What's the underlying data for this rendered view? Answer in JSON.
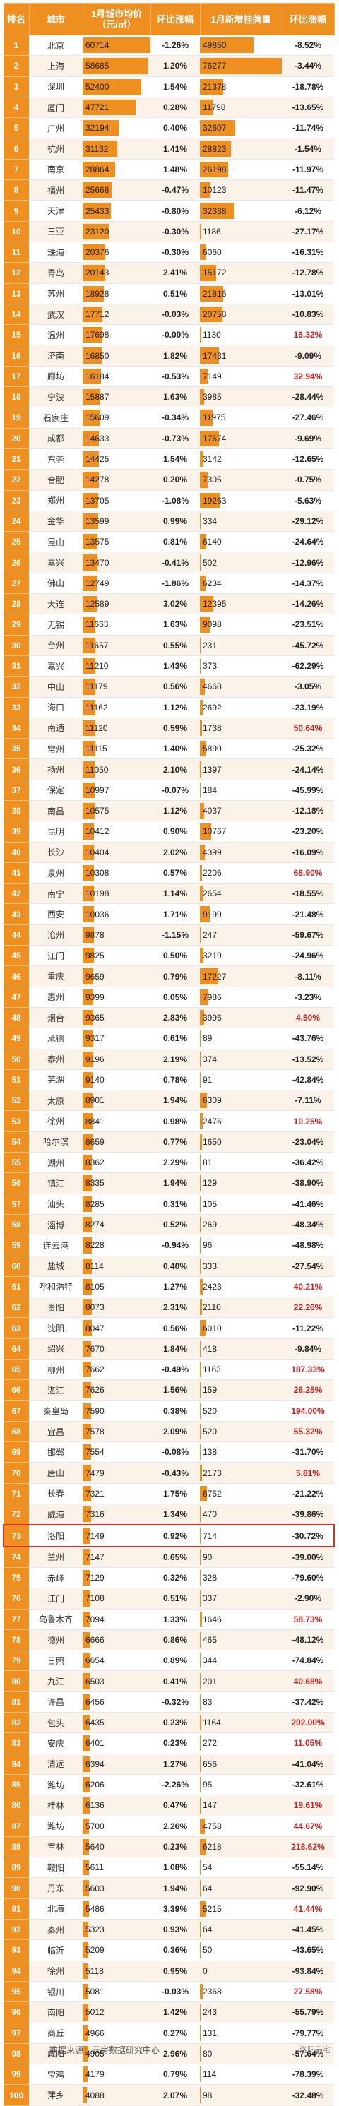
{
  "header": {
    "rank": "排名",
    "city": "城市",
    "price": "1月城市均价\n（元/㎡）",
    "price_change": "环比涨幅",
    "listings": "1月新增挂牌量",
    "listings_change": "环比涨幅"
  },
  "highlighted_rank": 73,
  "footer": {
    "source": "数据来源：云房数据研究中心",
    "watermark": "洛阳云宅"
  },
  "colors": {
    "header": "#ef8f1f",
    "bar": "#ef8f1f",
    "highlight_border": "#d0342c",
    "positive_change": "#c81e1e"
  },
  "max_price": 60714,
  "max_listings": 76277,
  "rows": [
    [
      "1",
      "北京",
      "60714",
      "-1.26%",
      "49850",
      "-8.52%"
    ],
    [
      "2",
      "上海",
      "58685",
      "1.20%",
      "76277",
      "-3.44%"
    ],
    [
      "3",
      "深圳",
      "52400",
      "1.54%",
      "21378",
      "-18.78%"
    ],
    [
      "4",
      "厦门",
      "47721",
      "0.28%",
      "11798",
      "-13.65%"
    ],
    [
      "5",
      "广州",
      "32194",
      "0.40%",
      "32607",
      "-11.74%"
    ],
    [
      "6",
      "杭州",
      "31132",
      "1.41%",
      "28823",
      "-1.54%"
    ],
    [
      "7",
      "南京",
      "28864",
      "1.48%",
      "26198",
      "-11.97%"
    ],
    [
      "8",
      "福州",
      "25668",
      "-0.47%",
      "10123",
      "-11.47%"
    ],
    [
      "9",
      "天津",
      "25433",
      "-0.80%",
      "32338",
      "-6.12%"
    ],
    [
      "10",
      "三亚",
      "23120",
      "-0.30%",
      "1186",
      "-27.17%"
    ],
    [
      "11",
      "珠海",
      "20376",
      "-0.30%",
      "6060",
      "-16.31%"
    ],
    [
      "12",
      "青岛",
      "20143",
      "2.41%",
      "15172",
      "-12.78%"
    ],
    [
      "13",
      "苏州",
      "18928",
      "0.51%",
      "21816",
      "-13.01%"
    ],
    [
      "14",
      "武汉",
      "17712",
      "-0.03%",
      "20758",
      "-10.83%"
    ],
    [
      "15",
      "温州",
      "17698",
      "-0.00%",
      "1130",
      "16.32%"
    ],
    [
      "16",
      "济南",
      "16850",
      "1.82%",
      "17431",
      "-9.09%"
    ],
    [
      "17",
      "廊坊",
      "16184",
      "-0.53%",
      "7149",
      "32.94%"
    ],
    [
      "18",
      "宁波",
      "15887",
      "1.63%",
      "3985",
      "-28.44%"
    ],
    [
      "19",
      "石家庄",
      "15609",
      "-0.34%",
      "11975",
      "-27.46%"
    ],
    [
      "20",
      "成都",
      "14633",
      "-0.73%",
      "17674",
      "-9.69%"
    ],
    [
      "21",
      "东莞",
      "14425",
      "1.54%",
      "3142",
      "-12.65%"
    ],
    [
      "22",
      "合肥",
      "14278",
      "0.20%",
      "7305",
      "-0.75%"
    ],
    [
      "23",
      "郑州",
      "13705",
      "-1.08%",
      "19263",
      "-5.63%"
    ],
    [
      "24",
      "金华",
      "13599",
      "0.99%",
      "334",
      "-29.12%"
    ],
    [
      "25",
      "昆山",
      "13575",
      "0.81%",
      "6140",
      "-24.64%"
    ],
    [
      "26",
      "嘉兴",
      "13470",
      "-0.41%",
      "502",
      "-12.96%"
    ],
    [
      "27",
      "佛山",
      "12749",
      "-1.86%",
      "6234",
      "-14.37%"
    ],
    [
      "28",
      "大连",
      "12589",
      "3.02%",
      "12395",
      "-14.26%"
    ],
    [
      "29",
      "无锡",
      "11663",
      "1.63%",
      "9098",
      "-23.51%"
    ],
    [
      "30",
      "台州",
      "11657",
      "0.55%",
      "231",
      "-45.72%"
    ],
    [
      "31",
      "嘉兴",
      "11210",
      "1.43%",
      "373",
      "-62.29%"
    ],
    [
      "32",
      "中山",
      "11179",
      "0.56%",
      "4668",
      "-3.05%"
    ],
    [
      "33",
      "海口",
      "11162",
      "1.12%",
      "2692",
      "-23.19%"
    ],
    [
      "34",
      "南通",
      "11120",
      "0.59%",
      "1738",
      "50.64%"
    ],
    [
      "35",
      "常州",
      "11115",
      "1.40%",
      "5890",
      "-25.32%"
    ],
    [
      "36",
      "扬州",
      "11050",
      "2.10%",
      "1397",
      "-24.14%"
    ],
    [
      "37",
      "保定",
      "10997",
      "-0.07%",
      "184",
      "-45.99%"
    ],
    [
      "38",
      "南昌",
      "10575",
      "1.12%",
      "4037",
      "-12.18%"
    ],
    [
      "39",
      "昆明",
      "10412",
      "0.90%",
      "10767",
      "-23.20%"
    ],
    [
      "40",
      "长沙",
      "10404",
      "2.02%",
      "4399",
      "-16.09%"
    ],
    [
      "41",
      "泉州",
      "10308",
      "0.57%",
      "2206",
      "68.90%"
    ],
    [
      "42",
      "南宁",
      "10198",
      "1.14%",
      "2654",
      "-18.55%"
    ],
    [
      "43",
      "西安",
      "10036",
      "1.71%",
      "9199",
      "-21.48%"
    ],
    [
      "44",
      "沧州",
      "9878",
      "-1.15%",
      "247",
      "-59.67%"
    ],
    [
      "45",
      "江门",
      "9825",
      "0.50%",
      "3219",
      "-24.96%"
    ],
    [
      "46",
      "重庆",
      "9659",
      "0.79%",
      "17227",
      "-8.11%"
    ],
    [
      "47",
      "惠州",
      "9399",
      "0.05%",
      "7986",
      "-3.23%"
    ],
    [
      "48",
      "烟台",
      "9365",
      "2.83%",
      "3996",
      "4.50%"
    ],
    [
      "49",
      "承德",
      "9317",
      "0.61%",
      "89",
      "-43.76%"
    ],
    [
      "50",
      "泰州",
      "9196",
      "2.19%",
      "374",
      "-13.52%"
    ],
    [
      "51",
      "芜湖",
      "9140",
      "0.78%",
      "91",
      "-42.84%"
    ],
    [
      "52",
      "太原",
      "8901",
      "1.94%",
      "6309",
      "-7.11%"
    ],
    [
      "53",
      "徐州",
      "8841",
      "0.98%",
      "2476",
      "10.25%"
    ],
    [
      "54",
      "哈尔滨",
      "8659",
      "0.77%",
      "1650",
      "-23.04%"
    ],
    [
      "55",
      "湖州",
      "8362",
      "2.29%",
      "81",
      "-36.42%"
    ],
    [
      "56",
      "镇江",
      "8335",
      "1.94%",
      "129",
      "-38.90%"
    ],
    [
      "57",
      "汕头",
      "8285",
      "0.31%",
      "105",
      "-41.46%"
    ],
    [
      "58",
      "淄博",
      "8274",
      "0.52%",
      "269",
      "-48.34%"
    ],
    [
      "59",
      "连云港",
      "8228",
      "-0.94%",
      "96",
      "-48.98%"
    ],
    [
      "60",
      "盐城",
      "8114",
      "0.40%",
      "333",
      "-27.54%"
    ],
    [
      "61",
      "呼和浩特",
      "8105",
      "1.27%",
      "2423",
      "40.21%"
    ],
    [
      "62",
      "贵阳",
      "8073",
      "2.31%",
      "2110",
      "22.26%"
    ],
    [
      "63",
      "沈阳",
      "8047",
      "0.56%",
      "6010",
      "-11.22%"
    ],
    [
      "64",
      "绍兴",
      "7670",
      "1.84%",
      "418",
      "-9.84%"
    ],
    [
      "65",
      "柳州",
      "7662",
      "-0.49%",
      "1163",
      "187.33%"
    ],
    [
      "66",
      "湛江",
      "7626",
      "1.56%",
      "159",
      "26.25%"
    ],
    [
      "67",
      "秦皇岛",
      "7590",
      "0.38%",
      "520",
      "194.00%"
    ],
    [
      "68",
      "宜昌",
      "7578",
      "2.09%",
      "520",
      "55.32%"
    ],
    [
      "69",
      "邯郸",
      "7554",
      "-0.08%",
      "138",
      "-31.70%"
    ],
    [
      "70",
      "唐山",
      "7479",
      "-0.43%",
      "2173",
      "5.81%"
    ],
    [
      "71",
      "长春",
      "7321",
      "1.75%",
      "6752",
      "-21.22%"
    ],
    [
      "72",
      "威海",
      "7316",
      "1.34%",
      "470",
      "-39.86%"
    ],
    [
      "73",
      "洛阳",
      "7149",
      "0.92%",
      "714",
      "-30.72%"
    ],
    [
      "74",
      "兰州",
      "7147",
      "0.65%",
      "90",
      "-39.00%"
    ],
    [
      "75",
      "赤峰",
      "7129",
      "0.32%",
      "328",
      "-79.60%"
    ],
    [
      "76",
      "江门",
      "7108",
      "0.51%",
      "337",
      "-2.90%"
    ],
    [
      "77",
      "乌鲁木齐",
      "7094",
      "1.33%",
      "1646",
      "58.73%"
    ],
    [
      "78",
      "德州",
      "6666",
      "0.86%",
      "465",
      "-48.12%"
    ],
    [
      "79",
      "日照",
      "6654",
      "0.89%",
      "344",
      "-74.84%"
    ],
    [
      "80",
      "九江",
      "6503",
      "0.41%",
      "201",
      "40.68%"
    ],
    [
      "81",
      "许昌",
      "6456",
      "-0.32%",
      "83",
      "-37.42%"
    ],
    [
      "82",
      "包头",
      "6435",
      "0.23%",
      "1164",
      "202.00%"
    ],
    [
      "83",
      "安庆",
      "6401",
      "0.23%",
      "272",
      "11.05%"
    ],
    [
      "84",
      "清远",
      "6394",
      "1.27%",
      "656",
      "-41.04%"
    ],
    [
      "85",
      "潍坊",
      "6206",
      "-2.26%",
      "95",
      "-32.61%"
    ],
    [
      "86",
      "桂林",
      "6136",
      "0.47%",
      "147",
      "19.61%"
    ],
    [
      "87",
      "潍坊",
      "5700",
      "2.26%",
      "4758",
      "44.67%"
    ],
    [
      "88",
      "吉林",
      "5640",
      "0.23%",
      "6218",
      "218.62%"
    ],
    [
      "89",
      "鞍阳",
      "5611",
      "1.08%",
      "54",
      "-55.14%"
    ],
    [
      "90",
      "丹东",
      "5603",
      "1.94%",
      "64",
      "-92.90%"
    ],
    [
      "91",
      "北海",
      "5486",
      "3.39%",
      "5215",
      "41.44%"
    ],
    [
      "92",
      "秦州",
      "5323",
      "0.93%",
      "64",
      "-41.45%"
    ],
    [
      "93",
      "临沂",
      "5209",
      "0.36%",
      "50",
      "-43.65%"
    ],
    [
      "94",
      "徐州",
      "5118",
      "0.95%",
      "0",
      "-93.84%"
    ],
    [
      "95",
      "银川",
      "5081",
      "-0.03%",
      "2368",
      "27.58%"
    ],
    [
      "96",
      "南阳",
      "5012",
      "1.42%",
      "243",
      "-55.79%"
    ],
    [
      "97",
      "商丘",
      "4966",
      "0.27%",
      "131",
      "-79.77%"
    ],
    [
      "98",
      "咸阳",
      "4905",
      "2.96%",
      "80",
      "-57.64%"
    ],
    [
      "99",
      "宝鸡",
      "4179",
      "0.79%",
      "114",
      "-78.39%"
    ],
    [
      "100",
      "萍乡",
      "4088",
      "2.07%",
      "98",
      "-32.48%"
    ]
  ]
}
